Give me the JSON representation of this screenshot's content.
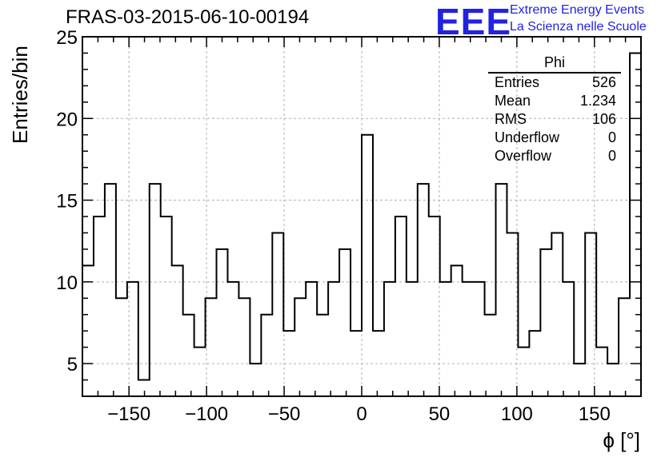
{
  "page": {
    "title": "FRAS-03-2015-06-10-00194",
    "logo": {
      "mark": "EEE",
      "line1": "Extreme Energy Events",
      "line2": "La Scienza nelle Scuole",
      "color": "#2222e0"
    }
  },
  "stats": {
    "title": "Phi",
    "rows": [
      {
        "label": "Entries",
        "value": "526"
      },
      {
        "label": "Mean",
        "value": "1.234"
      },
      {
        "label": "RMS",
        "value": "106"
      },
      {
        "label": "Underflow",
        "value": "0"
      },
      {
        "label": "Overflow",
        "value": "0"
      }
    ]
  },
  "chart_data": {
    "type": "histogram",
    "xlabel": "ϕ [°]",
    "ylabel": "Entries/bin",
    "xlim": [
      -180,
      180
    ],
    "ylim": [
      3,
      25
    ],
    "bin_width": 7.2,
    "x_ticks": [
      "−150",
      "−100",
      "−50",
      "0",
      "50",
      "100",
      "150"
    ],
    "x_tick_values": [
      -150,
      -100,
      -50,
      0,
      50,
      100,
      150
    ],
    "y_ticks": [
      "5",
      "10",
      "15",
      "20",
      "25"
    ],
    "y_tick_values": [
      5,
      10,
      15,
      20,
      25
    ],
    "grid": true,
    "line_color": "#000000",
    "values": [
      11,
      14,
      16,
      9,
      10,
      4,
      16,
      14,
      11,
      8,
      6,
      9,
      12,
      10,
      9,
      5,
      8,
      13,
      7,
      9,
      10,
      8,
      10,
      12,
      7,
      19,
      7,
      10,
      14,
      10,
      16,
      14,
      10,
      11,
      10,
      10,
      8,
      16,
      13,
      6,
      7,
      12,
      13,
      10,
      5,
      13,
      6,
      5,
      9,
      24
    ]
  }
}
